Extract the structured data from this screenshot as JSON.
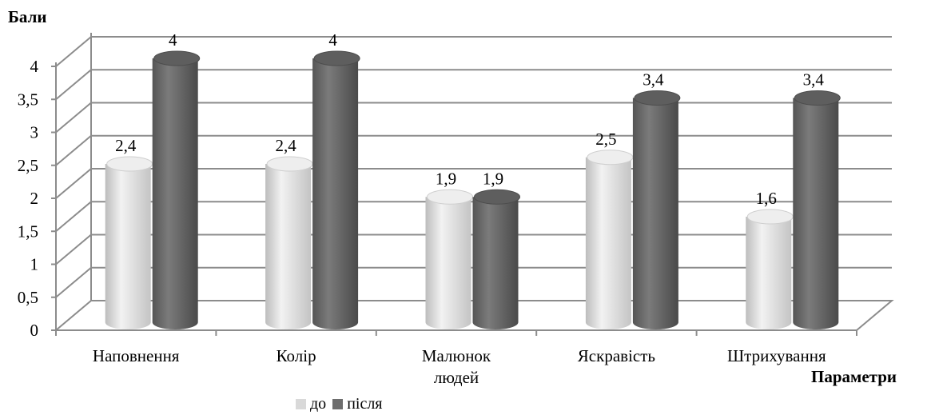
{
  "chart_data": {
    "type": "bar",
    "ylabel": "Бали",
    "xlabel": "Параметри",
    "categories": [
      "Наповнення",
      "Колір",
      "Малюнок людей",
      "Яскравість",
      "Штрихування"
    ],
    "series": [
      {
        "name": "до",
        "values": [
          2.4,
          2.4,
          1.9,
          2.5,
          1.6
        ],
        "labels": [
          "2,4",
          "2,4",
          "1,9",
          "2,5",
          "1,6"
        ],
        "color": "#d9d9d9"
      },
      {
        "name": "після",
        "values": [
          4,
          4,
          1.9,
          3.4,
          3.4
        ],
        "labels": [
          "4",
          "4",
          "1,9",
          "3,4",
          "3,4"
        ],
        "color": "#6d6d6d"
      }
    ],
    "yticks": [
      "0",
      "0,5",
      "1",
      "1,5",
      "2",
      "2,5",
      "3",
      "3,5",
      "4"
    ],
    "ylim": [
      0,
      4
    ],
    "grid": true,
    "legend_position": "bottom"
  }
}
